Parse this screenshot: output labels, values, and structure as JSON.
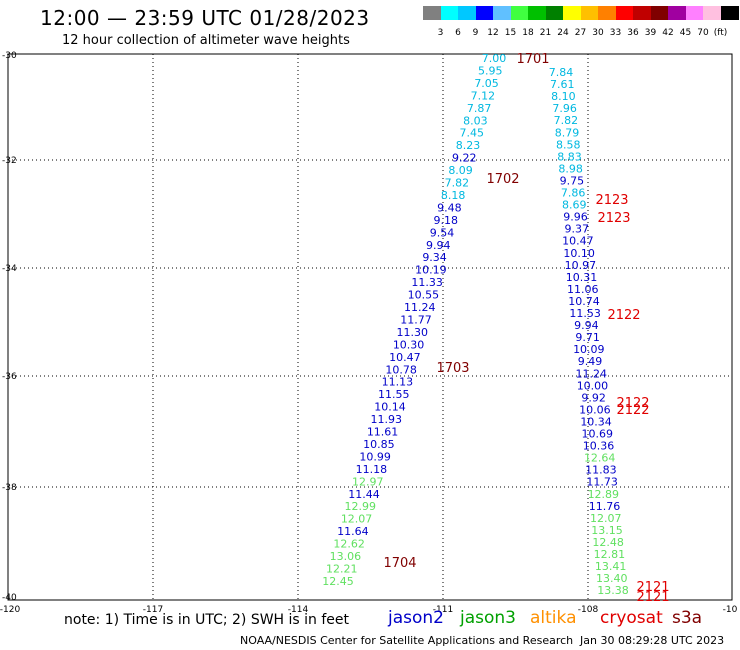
{
  "header": {
    "title": "12:00 — 23:59 UTC 01/28/2023",
    "subtitle": "12 hour collection of altimeter wave heights"
  },
  "colorbar": {
    "colors": [
      "#808080",
      "#00ffff",
      "#00c8ff",
      "#0000ff",
      "#60c0ff",
      "#40ff40",
      "#00c000",
      "#008000",
      "#ffff00",
      "#ffc000",
      "#ff8000",
      "#ff0000",
      "#c00000",
      "#800000",
      "#a000a0",
      "#ff80ff",
      "#ffc0e0",
      "#000000"
    ],
    "labels": [
      "3",
      "6",
      "9",
      "12",
      "15",
      "18",
      "21",
      "24",
      "27",
      "30",
      "33",
      "36",
      "39",
      "42",
      "45",
      "70",
      "(ft)"
    ]
  },
  "axes": {
    "lon_ticks": [
      "-120",
      "-117",
      "-114",
      "-111",
      "-108",
      "-10"
    ],
    "lat_ticks": [
      "-30",
      "-32",
      "-34",
      "-36",
      "-38",
      "-40"
    ]
  },
  "tracks": {
    "colors": {
      "cyan": "#00b8e0",
      "navy": "#0000c8",
      "green": "#60e060",
      "red": "#e00000",
      "maroon": "#800000"
    },
    "west": [
      {
        "v": "7.00",
        "c": "cyan"
      },
      {
        "v": "5.95",
        "c": "cyan"
      },
      {
        "v": "7.05",
        "c": "cyan"
      },
      {
        "v": "7.12",
        "c": "cyan"
      },
      {
        "v": "7.87",
        "c": "cyan"
      },
      {
        "v": "8.03",
        "c": "cyan"
      },
      {
        "v": "7.45",
        "c": "cyan"
      },
      {
        "v": "8.23",
        "c": "cyan"
      },
      {
        "v": "9.22",
        "c": "navy"
      },
      {
        "v": "8.09",
        "c": "cyan"
      },
      {
        "v": "7.82",
        "c": "cyan"
      },
      {
        "v": "8.18",
        "c": "cyan"
      },
      {
        "v": "9.48",
        "c": "navy"
      },
      {
        "v": "9.18",
        "c": "navy"
      },
      {
        "v": "9.54",
        "c": "navy"
      },
      {
        "v": "9.94",
        "c": "navy"
      },
      {
        "v": "9.34",
        "c": "navy"
      },
      {
        "v": "10.19",
        "c": "navy"
      },
      {
        "v": "11.33",
        "c": "navy"
      },
      {
        "v": "10.55",
        "c": "navy"
      },
      {
        "v": "11.24",
        "c": "navy"
      },
      {
        "v": "11.77",
        "c": "navy"
      },
      {
        "v": "11.30",
        "c": "navy"
      },
      {
        "v": "10.30",
        "c": "navy"
      },
      {
        "v": "10.47",
        "c": "navy"
      },
      {
        "v": "10.78",
        "c": "navy"
      },
      {
        "v": "11.13",
        "c": "navy"
      },
      {
        "v": "11.55",
        "c": "navy"
      },
      {
        "v": "10.14",
        "c": "navy"
      },
      {
        "v": "11.93",
        "c": "navy"
      },
      {
        "v": "11.61",
        "c": "navy"
      },
      {
        "v": "10.85",
        "c": "navy"
      },
      {
        "v": "10.99",
        "c": "navy"
      },
      {
        "v": "11.18",
        "c": "navy"
      },
      {
        "v": "12.97",
        "c": "green"
      },
      {
        "v": "11.44",
        "c": "navy"
      },
      {
        "v": "12.99",
        "c": "green"
      },
      {
        "v": "12.07",
        "c": "green"
      },
      {
        "v": "11.64",
        "c": "navy"
      },
      {
        "v": "12.62",
        "c": "green"
      },
      {
        "v": "13.06",
        "c": "green"
      },
      {
        "v": "12.21",
        "c": "green"
      },
      {
        "v": "12.45",
        "c": "green"
      }
    ],
    "east": [
      {
        "v": "7.84",
        "c": "cyan"
      },
      {
        "v": "7.61",
        "c": "cyan"
      },
      {
        "v": "8.10",
        "c": "cyan"
      },
      {
        "v": "7.96",
        "c": "cyan"
      },
      {
        "v": "7.82",
        "c": "cyan"
      },
      {
        "v": "8.79",
        "c": "cyan"
      },
      {
        "v": "8.58",
        "c": "cyan"
      },
      {
        "v": "8.83",
        "c": "cyan"
      },
      {
        "v": "8.98",
        "c": "cyan"
      },
      {
        "v": "9.75",
        "c": "navy"
      },
      {
        "v": "7.86",
        "c": "cyan"
      },
      {
        "v": "8.69",
        "c": "cyan"
      },
      {
        "v": "9.96",
        "c": "navy"
      },
      {
        "v": "9.37",
        "c": "navy"
      },
      {
        "v": "10.47",
        "c": "navy"
      },
      {
        "v": "10.10",
        "c": "navy"
      },
      {
        "v": "10.97",
        "c": "navy"
      },
      {
        "v": "10.31",
        "c": "navy"
      },
      {
        "v": "11.06",
        "c": "navy"
      },
      {
        "v": "10.74",
        "c": "navy"
      },
      {
        "v": "11.53",
        "c": "navy"
      },
      {
        "v": "9.94",
        "c": "navy"
      },
      {
        "v": "9.71",
        "c": "navy"
      },
      {
        "v": "10.09",
        "c": "navy"
      },
      {
        "v": "9.49",
        "c": "navy"
      },
      {
        "v": "11.24",
        "c": "navy"
      },
      {
        "v": "10.00",
        "c": "navy"
      },
      {
        "v": "9.92",
        "c": "navy"
      },
      {
        "v": "10.06",
        "c": "navy"
      },
      {
        "v": "10.34",
        "c": "navy"
      },
      {
        "v": "10.69",
        "c": "navy"
      },
      {
        "v": "10.36",
        "c": "navy"
      },
      {
        "v": "12.64",
        "c": "green"
      },
      {
        "v": "11.83",
        "c": "navy"
      },
      {
        "v": "11.73",
        "c": "navy"
      },
      {
        "v": "12.89",
        "c": "green"
      },
      {
        "v": "11.76",
        "c": "navy"
      },
      {
        "v": "12.07",
        "c": "green"
      },
      {
        "v": "13.15",
        "c": "green"
      },
      {
        "v": "12.48",
        "c": "green"
      },
      {
        "v": "12.81",
        "c": "green"
      },
      {
        "v": "13.41",
        "c": "green"
      },
      {
        "v": "13.40",
        "c": "green"
      },
      {
        "v": "13.38",
        "c": "green"
      }
    ],
    "pass_labels": [
      {
        "t": "1701",
        "c": "maroon"
      },
      {
        "t": "1702",
        "c": "maroon"
      },
      {
        "t": "1703",
        "c": "maroon"
      },
      {
        "t": "1704",
        "c": "maroon"
      },
      {
        "t": "2123",
        "c": "red"
      },
      {
        "t": "2123",
        "c": "red"
      },
      {
        "t": "2122",
        "c": "red"
      },
      {
        "t": "2122",
        "c": "red"
      },
      {
        "t": "2122",
        "c": "red"
      },
      {
        "t": "2121",
        "c": "red"
      },
      {
        "t": "2121",
        "c": "red"
      }
    ]
  },
  "note": "note: 1) Time is in UTC; 2) SWH is in feet",
  "legend": [
    {
      "label": "jason2",
      "color": "#0000c8"
    },
    {
      "label": "jason3",
      "color": "#00a000"
    },
    {
      "label": "altika",
      "color": "#ff9000"
    },
    {
      "label": "cryosat",
      "color": "#e00000"
    },
    {
      "label": "s3a",
      "color": "#800000"
    }
  ],
  "footer": {
    "org": "NOAA/NESDIS Center for Satellite Applications and Research",
    "timestamp": "Jan 30 08:29:28 UTC 2023"
  }
}
